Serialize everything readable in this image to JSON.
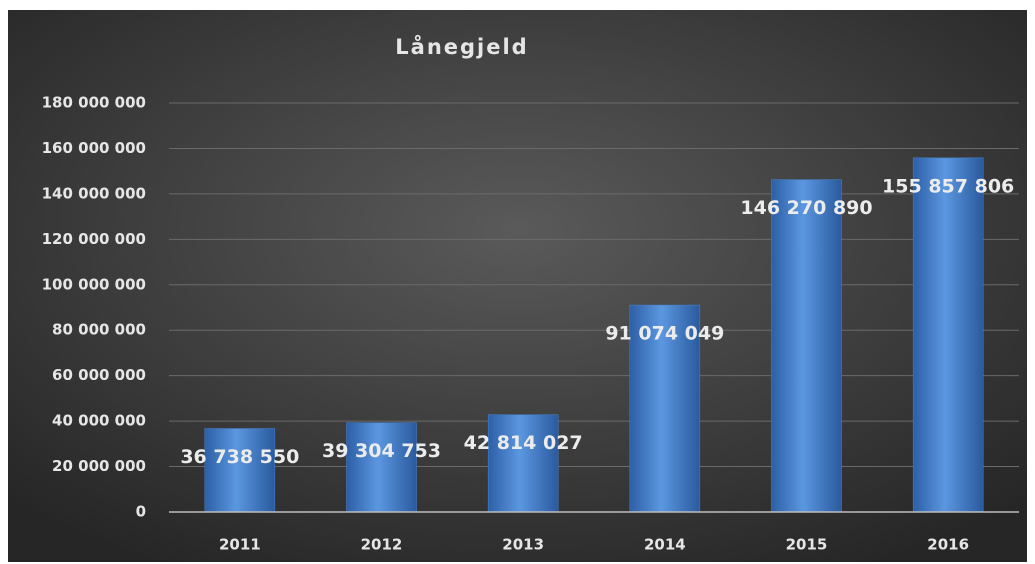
{
  "chart_data": {
    "type": "bar",
    "title": "Lånegjeld",
    "categories": [
      "2011",
      "2012",
      "2013",
      "2014",
      "2015",
      "2016"
    ],
    "values": [
      36738550,
      39304753,
      42814027,
      91074049,
      146270890,
      155857806
    ],
    "value_labels": [
      "36 738 550",
      "39 304 753",
      "42 814 027",
      "91 074 049",
      "146 270 890",
      "155 857 806"
    ],
    "color": "#4a86d4",
    "ylim": [
      0,
      180000000
    ],
    "yticks": [
      0,
      {
        "value": 20000000,
        "label": "20 000 000"
      },
      {
        "value": 40000000,
        "label": "40 000 000"
      },
      {
        "value": 60000000,
        "label": "60 000 000"
      },
      {
        "value": 80000000,
        "label": "80 000 000"
      },
      {
        "value": 100000000,
        "label": "100 000 000"
      },
      {
        "value": 120000000,
        "label": "120 000 000"
      },
      {
        "value": 140000000,
        "label": "140 000 000"
      },
      {
        "value": 160000000,
        "label": "160 000 000"
      },
      {
        "value": 180000000,
        "label": "180 000 000"
      }
    ],
    "grid": true
  }
}
